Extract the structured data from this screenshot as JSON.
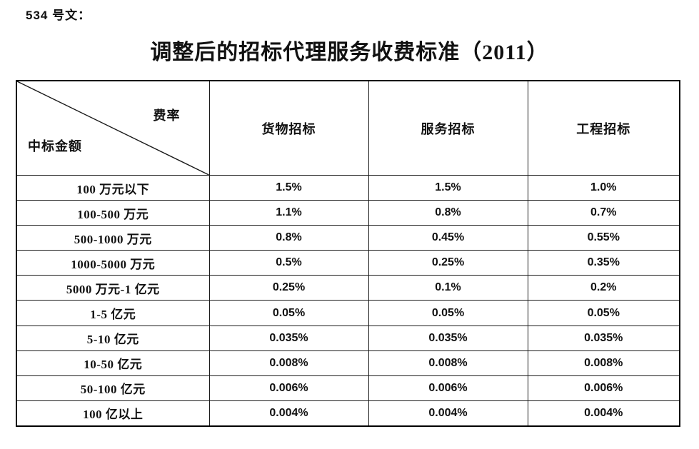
{
  "document": {
    "doc_number": "534 号文：",
    "title": "调整后的招标代理服务收费标准（2011）"
  },
  "table": {
    "corner": {
      "top_right": "费率",
      "bottom_left": "中标金额"
    },
    "columns": [
      "货物招标",
      "服务招标",
      "工程招标"
    ],
    "rows": [
      {
        "label": "100 万元以下",
        "values": [
          "1.5%",
          "1.5%",
          "1.0%"
        ]
      },
      {
        "label": "100-500 万元",
        "values": [
          "1.1%",
          "0.8%",
          "0.7%"
        ]
      },
      {
        "label": "500-1000 万元",
        "values": [
          "0.8%",
          "0.45%",
          "0.55%"
        ]
      },
      {
        "label": "1000-5000 万元",
        "values": [
          "0.5%",
          "0.25%",
          "0.35%"
        ]
      },
      {
        "label": "5000 万元-1 亿元",
        "values": [
          "0.25%",
          "0.1%",
          "0.2%"
        ]
      },
      {
        "label": "1-5 亿元",
        "values": [
          "0.05%",
          "0.05%",
          "0.05%"
        ]
      },
      {
        "label": "5-10 亿元",
        "values": [
          "0.035%",
          "0.035%",
          "0.035%"
        ]
      },
      {
        "label": "10-50 亿元",
        "values": [
          "0.008%",
          "0.008%",
          "0.008%"
        ]
      },
      {
        "label": "50-100 亿元",
        "values": [
          "0.006%",
          "0.006%",
          "0.006%"
        ]
      },
      {
        "label": "100 亿以上",
        "values": [
          "0.004%",
          "0.004%",
          "0.004%"
        ]
      }
    ]
  },
  "colors": {
    "background": "#ffffff",
    "text": "#111111",
    "border": "#1a1a1a"
  }
}
